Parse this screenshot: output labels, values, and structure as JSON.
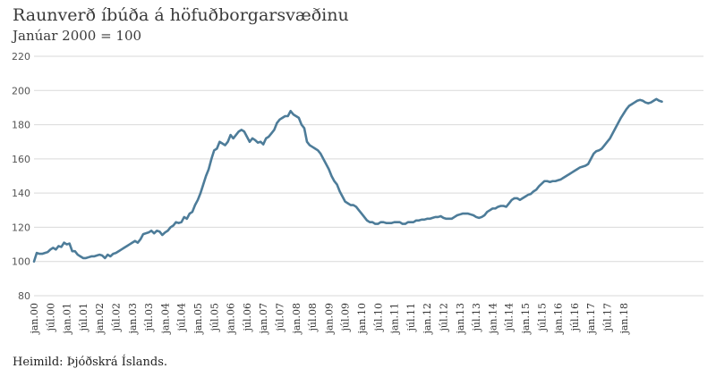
{
  "chart_data": {
    "type": "line",
    "title": "Raunverð íbúða á höfuðborgarsvæðinu",
    "subtitle": "Janúar 2000 = 100",
    "source": "Heimild: Þjóðskrá Íslands.",
    "xlabel": "",
    "ylabel": "",
    "ylim": [
      80,
      220
    ],
    "yticks": [
      80,
      100,
      120,
      140,
      160,
      180,
      200,
      220
    ],
    "grid": true,
    "xtick_labels": [
      "jan.00",
      "júl.00",
      "jan.01",
      "júl.01",
      "jan.02",
      "júl.02",
      "jan.03",
      "júl.03",
      "jan.04",
      "júl.04",
      "jan.05",
      "júl.05",
      "jan.06",
      "júl.06",
      "jan.07",
      "júl.07",
      "jan.08",
      "júl.08",
      "jan.09",
      "júl.09",
      "jan.10",
      "júl.10",
      "jan.11",
      "júl.11",
      "jan.12",
      "júl.12",
      "jan.13",
      "júl.13",
      "jan.14",
      "júl.14",
      "jan.15",
      "júl.15",
      "jan.16",
      "júl.16",
      "jan.17",
      "júl.17",
      "jan.18"
    ],
    "series": [
      {
        "color": "#4d7c99",
        "values": [
          100,
          105,
          104.5,
          104.5,
          105,
          105.5,
          107,
          108,
          107,
          109,
          108.5,
          111,
          110,
          110.5,
          106,
          106,
          104,
          103,
          102,
          102,
          102.5,
          103,
          103,
          103.5,
          104,
          103.5,
          102,
          104,
          103,
          104.5,
          105,
          106,
          107,
          108,
          109,
          110,
          111,
          112,
          111,
          113,
          116,
          116.5,
          117,
          118,
          116.5,
          118,
          117.5,
          115.5,
          117,
          118,
          120,
          121,
          123,
          122.5,
          123,
          126,
          125,
          128,
          129,
          133,
          136,
          140,
          145,
          150,
          154,
          160,
          165,
          166,
          170,
          169,
          168,
          170,
          174,
          172,
          174,
          176,
          177,
          176,
          173,
          170,
          172,
          171,
          169.5,
          170,
          168.5,
          172,
          173,
          175,
          177,
          181,
          183,
          184,
          185,
          185,
          188,
          186,
          185,
          184,
          180,
          178,
          170,
          168,
          167,
          166,
          165,
          163,
          160,
          157,
          154,
          150,
          147,
          145,
          141,
          138,
          135,
          134,
          133,
          133,
          132,
          130,
          128,
          126,
          124,
          123,
          123,
          122,
          122,
          123,
          123,
          122.5,
          122.5,
          122.5,
          123,
          123,
          123,
          122,
          122,
          123,
          123,
          123,
          124,
          124,
          124.5,
          124.5,
          125,
          125,
          125.5,
          126,
          126,
          126.5,
          125.5,
          125,
          125,
          125,
          126,
          127,
          127.5,
          128,
          128,
          128,
          127.5,
          127,
          126,
          125.5,
          126,
          127,
          129,
          130,
          131,
          131,
          132,
          132.5,
          132.5,
          132,
          134,
          136,
          137,
          137,
          136,
          137,
          138,
          139,
          139.5,
          141,
          142,
          144,
          145.5,
          147,
          147,
          146.5,
          147,
          147,
          147.5,
          148,
          149,
          150,
          151,
          152,
          153,
          154,
          155,
          155.5,
          156,
          157,
          160,
          163,
          164.5,
          165,
          166,
          168,
          170,
          172,
          175,
          178,
          181,
          184,
          186.5,
          189,
          191,
          192,
          193,
          194,
          194.5,
          194,
          193,
          192.5,
          193,
          194,
          195,
          194,
          193.5
        ]
      }
    ]
  }
}
